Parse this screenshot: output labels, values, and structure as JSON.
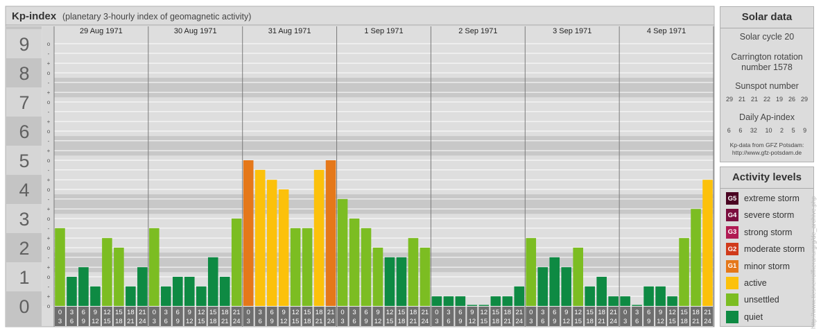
{
  "header": {
    "title": "Kp-index",
    "subtitle": "(planetary 3-hourly index of geomagnetic activity)"
  },
  "chart_data": {
    "type": "bar",
    "title": "Kp-index",
    "subtitle": "(planetary 3-hourly index of geomagnetic activity)",
    "ylim": [
      0,
      9
    ],
    "y_major_ticks": [
      "0",
      "1",
      "2",
      "3",
      "4",
      "5",
      "6",
      "7",
      "8",
      "9"
    ],
    "y_minor_ticks": [
      "-",
      "o",
      "+"
    ],
    "days": [
      {
        "label": "29 Aug 1971",
        "values": [
          2.67,
          1.0,
          1.33,
          0.67,
          2.33,
          2.0,
          0.67,
          1.33
        ]
      },
      {
        "label": "30 Aug 1971",
        "values": [
          2.67,
          0.67,
          1.0,
          1.0,
          0.67,
          1.67,
          1.0,
          3.0
        ]
      },
      {
        "label": "31 Aug 1971",
        "values": [
          5.0,
          4.67,
          4.33,
          4.0,
          2.67,
          2.67,
          4.67,
          5.0
        ]
      },
      {
        "label": "1 Sep 1971",
        "values": [
          3.67,
          3.0,
          2.67,
          2.0,
          1.67,
          1.67,
          2.33,
          2.0
        ]
      },
      {
        "label": "2 Sep 1971",
        "values": [
          0.33,
          0.33,
          0.33,
          0.0,
          0.0,
          0.33,
          0.33,
          0.67
        ]
      },
      {
        "label": "3 Sep 1971",
        "values": [
          2.33,
          1.33,
          1.67,
          1.33,
          2.0,
          0.67,
          1.0,
          0.33
        ]
      },
      {
        "label": "4 Sep 1971",
        "values": [
          0.33,
          0.0,
          0.67,
          0.67,
          0.33,
          2.33,
          3.33,
          4.33
        ]
      }
    ],
    "hour_starts": [
      "0",
      "3",
      "6",
      "9",
      "12",
      "15",
      "18",
      "21"
    ],
    "hour_ends": [
      "3",
      "6",
      "9",
      "12",
      "15",
      "18",
      "21",
      "24"
    ],
    "grid": true,
    "legend_position": "right"
  },
  "colors": {
    "quiet": "#0e8a43",
    "unsettled": "#7cbd22",
    "active": "#fcc10b",
    "minor_storm": "#e5781a",
    "moderate_storm": "#d03a1b",
    "strong_storm": "#b01a53",
    "severe_storm": "#7a0d3e",
    "extreme_storm": "#4a0422",
    "band_dark": "#c8c8c8",
    "band_light": "#dedede",
    "frame": "#dcdcdc",
    "axis_box": "#c4c4c4",
    "hour_box": "#6e6e6e"
  },
  "solar": {
    "title": "Solar data",
    "cycle": "Solar cycle 20",
    "carrington_line1": "Carrington rotation",
    "carrington_line2": "number 1578",
    "sunspot_title": "Sunspot number",
    "sunspot_values": [
      "29",
      "21",
      "21",
      "22",
      "19",
      "26",
      "29"
    ],
    "ap_title": "Daily Ap-index",
    "ap_values": [
      "6",
      "6",
      "32",
      "10",
      "2",
      "5",
      "9"
    ],
    "credit_line1": "Kp-data from GFZ Potsdam:",
    "credit_line2": "http://www.gfz-potsdam.de"
  },
  "activity": {
    "title": "Activity levels",
    "levels": [
      {
        "code": "G5",
        "label": "extreme storm",
        "color": "#4a0422"
      },
      {
        "code": "G4",
        "label": "severe storm",
        "color": "#7a0d3e"
      },
      {
        "code": "G3",
        "label": "strong storm",
        "color": "#b01a53"
      },
      {
        "code": "G2",
        "label": "moderate storm",
        "color": "#d03a1b"
      },
      {
        "code": "G1",
        "label": "minor storm",
        "color": "#e5781a"
      },
      {
        "code": "",
        "label": "active",
        "color": "#fcc10b"
      },
      {
        "code": "",
        "label": "unsettled",
        "color": "#7cbd22"
      },
      {
        "code": "",
        "label": "quiet",
        "color": "#0e8a43"
      }
    ]
  },
  "watermark": "http://www.tiesnerrolfkeranurgrg/de_archive.php"
}
